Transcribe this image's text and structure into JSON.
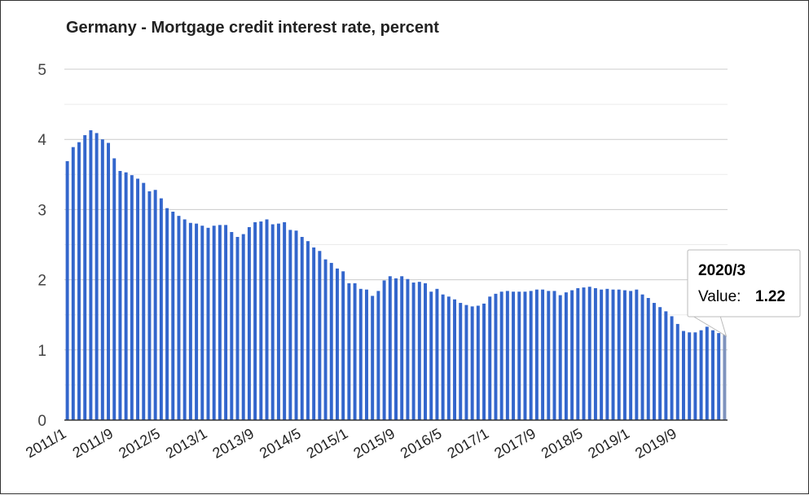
{
  "chart_data": {
    "type": "bar",
    "title": "Germany - Mortgage credit interest rate, percent",
    "xlabel": "",
    "ylabel": "",
    "ylim": [
      0,
      5
    ],
    "yticks": [
      "0",
      "1",
      "2",
      "3",
      "4",
      "5"
    ],
    "grid": true,
    "legend": "none",
    "bar_color": "#3366cc",
    "highlight_color": "#7f93bd",
    "x_tick_labels": [
      "2011/1",
      "2011/9",
      "2012/5",
      "2013/1",
      "2013/9",
      "2014/5",
      "2015/1",
      "2015/9",
      "2016/5",
      "2017/1",
      "2017/9",
      "2018/5",
      "2019/1",
      "2019/9"
    ],
    "x_start": "2011/1",
    "x_end": "2020/3",
    "values": [
      3.69,
      3.89,
      3.96,
      4.06,
      4.13,
      4.09,
      4.0,
      3.95,
      3.73,
      3.55,
      3.53,
      3.49,
      3.44,
      3.38,
      3.26,
      3.28,
      3.16,
      3.02,
      2.97,
      2.91,
      2.86,
      2.81,
      2.8,
      2.77,
      2.74,
      2.77,
      2.78,
      2.78,
      2.68,
      2.61,
      2.65,
      2.75,
      2.82,
      2.83,
      2.86,
      2.79,
      2.8,
      2.82,
      2.71,
      2.7,
      2.61,
      2.55,
      2.46,
      2.41,
      2.29,
      2.24,
      2.16,
      2.12,
      1.95,
      1.95,
      1.87,
      1.86,
      1.77,
      1.84,
      1.99,
      2.05,
      2.02,
      2.05,
      2.01,
      1.96,
      1.97,
      1.95,
      1.83,
      1.87,
      1.79,
      1.76,
      1.72,
      1.67,
      1.64,
      1.62,
      1.63,
      1.66,
      1.76,
      1.8,
      1.83,
      1.84,
      1.83,
      1.83,
      1.83,
      1.84,
      1.86,
      1.86,
      1.84,
      1.84,
      1.78,
      1.82,
      1.85,
      1.88,
      1.89,
      1.9,
      1.88,
      1.86,
      1.87,
      1.86,
      1.86,
      1.85,
      1.84,
      1.86,
      1.79,
      1.74,
      1.67,
      1.61,
      1.55,
      1.48,
      1.37,
      1.27,
      1.25,
      1.25,
      1.28,
      1.33,
      1.28,
      1.24,
      1.22
    ],
    "tooltip": {
      "date": "2020/3",
      "label": "Value:",
      "value": "1.22"
    }
  }
}
